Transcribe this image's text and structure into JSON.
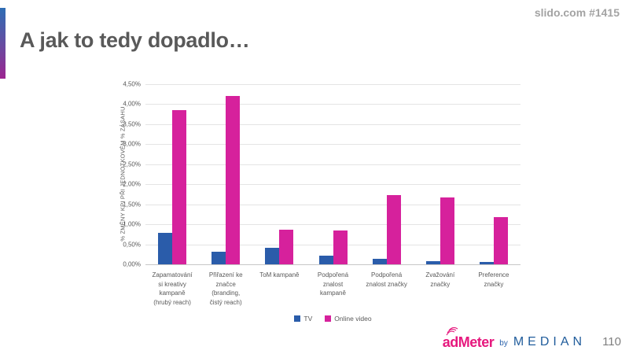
{
  "header": {
    "title": "A jak to tedy dopadlo…",
    "slido_ref": "slido.com #1415"
  },
  "footer": {
    "logo": {
      "ad": "ad",
      "meter": "Meter",
      "by": "by",
      "median": "MEDIAN"
    },
    "page_number": "110"
  },
  "colors": {
    "tv_blue": "#2a5caa",
    "online_pink": "#d6219c",
    "accent_top": "#2e6db4",
    "accent_bottom": "#9c2490",
    "title_gray": "#595959"
  },
  "chart_data": {
    "type": "bar",
    "title": "",
    "xlabel": "",
    "ylabel": "% ZMĚNY KPI PŘI JEDNOTKOVÉM % ZÁSAHU",
    "categories": [
      "Zapamatování\nsi kreativy\nkampaně\n(hrubý reach)",
      "Přiřazení ke\nznačce\n(branding,\nčistý reach)",
      "ToM kampaně",
      "Podpořená\nznalost\nkampaně",
      "Podpořená\nznalost značky",
      "Zvažování\nznačky",
      "Preference\nznačky"
    ],
    "series": [
      {
        "name": "TV",
        "color": "#2a5caa",
        "values": [
          0.78,
          0.32,
          0.41,
          0.22,
          0.13,
          0.07,
          0.06
        ]
      },
      {
        "name": "Online video",
        "color": "#d6219c",
        "values": [
          3.85,
          4.2,
          0.87,
          0.85,
          1.73,
          1.67,
          1.17
        ]
      }
    ],
    "ylim": [
      0,
      4.5
    ],
    "ytick_step": 0.5,
    "ytick_labels": [
      "0,00%",
      "0,50%",
      "1,00%",
      "1,50%",
      "2,00%",
      "2,50%",
      "3,00%",
      "3,50%",
      "4,00%",
      "4,50%"
    ],
    "grid": true,
    "legend_position": "bottom"
  }
}
